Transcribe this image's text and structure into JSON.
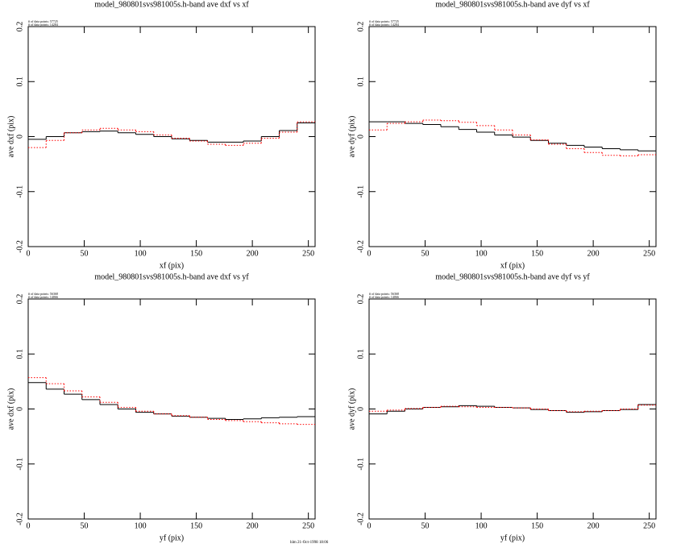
{
  "footer": "hlm 21-Oct-1998 18:06",
  "chart_data": [
    {
      "type": "histogram",
      "title": "model_980801svs981005s.h-band ave dxf vs xf",
      "annotations": [
        "# of data points: 57725",
        "# of data points: 14284"
      ],
      "xlabel": "xf (pix)",
      "ylabel": "ave dxf (pix)",
      "bins": [
        0,
        16,
        32,
        48,
        64,
        80,
        96,
        112,
        128,
        144,
        160,
        176,
        192,
        208,
        224,
        240,
        256
      ],
      "series": [
        {
          "color": "#000000",
          "values": [
            -0.005,
            0.0,
            0.007,
            0.009,
            0.01,
            0.007,
            0.004,
            0.0,
            -0.004,
            -0.007,
            -0.01,
            -0.01,
            -0.008,
            0.0,
            0.011,
            0.025
          ]
        },
        {
          "color": "#ff0000",
          "values": [
            -0.02,
            -0.007,
            0.007,
            0.012,
            0.015,
            0.012,
            0.009,
            0.003,
            -0.003,
            -0.008,
            -0.014,
            -0.016,
            -0.012,
            -0.003,
            0.008,
            0.027
          ]
        }
      ],
      "xlim": [
        0,
        256
      ],
      "xticks": [
        0,
        50,
        100,
        150,
        200,
        250
      ],
      "ylim": [
        -0.2,
        0.2
      ],
      "yticks": [
        -0.2,
        -0.1,
        0,
        0.1,
        0.2
      ]
    },
    {
      "type": "histogram",
      "title": "model_980801svs981005s.h-band ave dyf vs xf",
      "annotations": [
        "# of data points: 57725",
        "# of data points: 14284"
      ],
      "xlabel": "xf (pix)",
      "ylabel": "ave dyf (pix)",
      "bins": [
        0,
        16,
        32,
        48,
        64,
        80,
        96,
        112,
        128,
        144,
        160,
        176,
        192,
        208,
        224,
        240,
        256
      ],
      "series": [
        {
          "color": "#000000",
          "values": [
            0.027,
            0.027,
            0.024,
            0.022,
            0.018,
            0.013,
            0.008,
            0.003,
            -0.001,
            -0.007,
            -0.012,
            -0.016,
            -0.019,
            -0.022,
            -0.024,
            -0.026
          ]
        },
        {
          "color": "#ff0000",
          "values": [
            0.012,
            0.024,
            0.027,
            0.03,
            0.029,
            0.026,
            0.02,
            0.012,
            0.003,
            -0.006,
            -0.014,
            -0.022,
            -0.029,
            -0.034,
            -0.035,
            -0.033
          ]
        }
      ],
      "xlim": [
        0,
        256
      ],
      "xticks": [
        0,
        50,
        100,
        150,
        200,
        250
      ],
      "ylim": [
        -0.2,
        0.2
      ],
      "yticks": [
        -0.2,
        -0.1,
        0,
        0.1,
        0.2
      ]
    },
    {
      "type": "histogram",
      "title": "model_980801svs981005s.h-band ave dxf vs yf",
      "annotations": [
        "# of data points: 56368",
        "# of data points: 14066"
      ],
      "xlabel": "yf (pix)",
      "ylabel": "ave dxf (pix)",
      "bins": [
        0,
        16,
        32,
        48,
        64,
        80,
        96,
        112,
        128,
        144,
        160,
        176,
        192,
        208,
        224,
        240,
        256
      ],
      "series": [
        {
          "color": "#000000",
          "values": [
            0.048,
            0.036,
            0.027,
            0.017,
            0.008,
            0.0,
            -0.006,
            -0.009,
            -0.013,
            -0.015,
            -0.017,
            -0.019,
            -0.018,
            -0.016,
            -0.015,
            -0.014
          ]
        },
        {
          "color": "#ff0000",
          "values": [
            0.057,
            0.046,
            0.033,
            0.022,
            0.012,
            0.003,
            -0.004,
            -0.009,
            -0.012,
            -0.015,
            -0.019,
            -0.021,
            -0.023,
            -0.025,
            -0.027,
            -0.028
          ]
        }
      ],
      "xlim": [
        0,
        256
      ],
      "xticks": [
        0,
        50,
        100,
        150,
        200,
        250
      ],
      "ylim": [
        -0.2,
        0.2
      ],
      "yticks": [
        -0.2,
        -0.1,
        0,
        0.1,
        0.2
      ]
    },
    {
      "type": "histogram",
      "title": "model_980801svs981005s.h-band ave dyf vs yf",
      "annotations": [
        "# of data points: 56368",
        "# of data points: 14066"
      ],
      "xlabel": "yf (pix)",
      "ylabel": "ave dyf (pix)",
      "bins": [
        0,
        16,
        32,
        48,
        64,
        80,
        96,
        112,
        128,
        144,
        160,
        176,
        192,
        208,
        224,
        240,
        256
      ],
      "series": [
        {
          "color": "#000000",
          "values": [
            -0.009,
            -0.004,
            0.0,
            0.003,
            0.004,
            0.006,
            0.005,
            0.003,
            0.002,
            -0.001,
            -0.003,
            -0.006,
            -0.005,
            -0.003,
            -0.001,
            0.008
          ]
        },
        {
          "color": "#ff0000",
          "values": [
            -0.004,
            -0.002,
            0.001,
            0.003,
            0.005,
            0.004,
            0.003,
            0.003,
            0.002,
            0.0,
            -0.003,
            -0.005,
            -0.004,
            -0.003,
            0.0,
            0.007
          ]
        }
      ],
      "xlim": [
        0,
        256
      ],
      "xticks": [
        0,
        50,
        100,
        150,
        200,
        250
      ],
      "ylim": [
        -0.2,
        0.2
      ],
      "yticks": [
        -0.2,
        -0.1,
        0,
        0.1,
        0.2
      ]
    }
  ]
}
